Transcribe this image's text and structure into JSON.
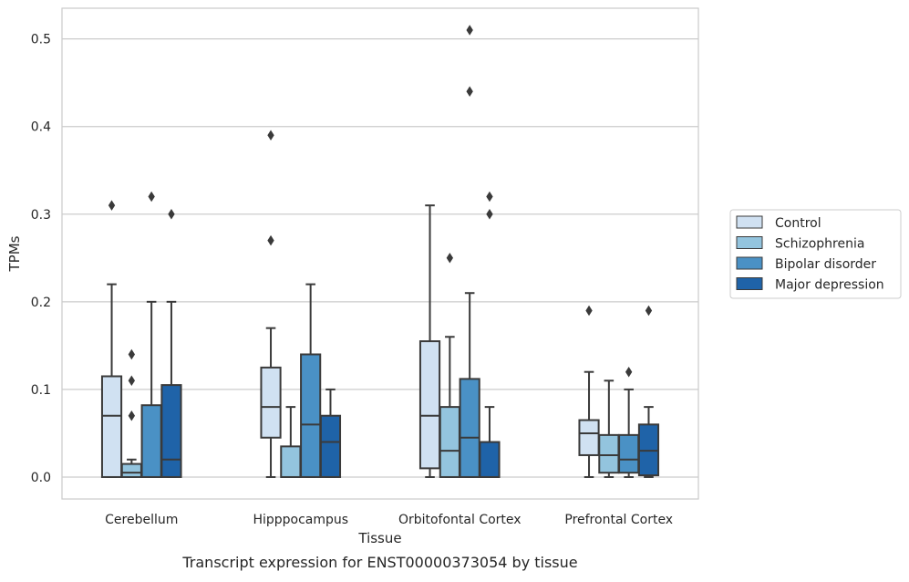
{
  "chart_data": {
    "type": "boxplot",
    "xlabel": "Tissue",
    "ylabel": "TPMs",
    "caption": "Transcript expression for ENST00000373054 by tissue",
    "ylim": [
      -0.025,
      0.535
    ],
    "yticks": [
      0.0,
      0.1,
      0.2,
      0.3,
      0.4,
      0.5
    ],
    "ytick_labels": [
      "0.0",
      "0.1",
      "0.2",
      "0.3",
      "0.4",
      "0.5"
    ],
    "grid": "horizontal",
    "legend_position": "right-outside",
    "categories": [
      "Cerebellum",
      "Hipppocampus",
      "Orbitofontal Cortex",
      "Prefrontal Cortex"
    ],
    "series": [
      {
        "name": "Control",
        "color": "#d0e1f2",
        "boxes": [
          {
            "whislo": 0.0,
            "q1": 0.0,
            "med": 0.07,
            "q3": 0.115,
            "whishi": 0.22,
            "fliers": [
              0.31
            ]
          },
          {
            "whislo": 0.0,
            "q1": 0.045,
            "med": 0.08,
            "q3": 0.125,
            "whishi": 0.17,
            "fliers": [
              0.27,
              0.39
            ]
          },
          {
            "whislo": 0.0,
            "q1": 0.01,
            "med": 0.07,
            "q3": 0.155,
            "whishi": 0.31,
            "fliers": []
          },
          {
            "whislo": 0.0,
            "q1": 0.025,
            "med": 0.05,
            "q3": 0.065,
            "whishi": 0.12,
            "fliers": [
              0.19
            ]
          }
        ]
      },
      {
        "name": "Schizophrenia",
        "color": "#93c4de",
        "boxes": [
          {
            "whislo": 0.0,
            "q1": 0.0,
            "med": 0.005,
            "q3": 0.015,
            "whishi": 0.02,
            "fliers": [
              0.07,
              0.11,
              0.14
            ]
          },
          {
            "whislo": 0.0,
            "q1": 0.0,
            "med": 0.0,
            "q3": 0.035,
            "whishi": 0.08,
            "fliers": []
          },
          {
            "whislo": 0.0,
            "q1": 0.0,
            "med": 0.03,
            "q3": 0.08,
            "whishi": 0.16,
            "fliers": [
              0.25
            ]
          },
          {
            "whislo": 0.0,
            "q1": 0.005,
            "med": 0.025,
            "q3": 0.048,
            "whishi": 0.11,
            "fliers": []
          }
        ]
      },
      {
        "name": "Bipolar disorder",
        "color": "#4a91c5",
        "boxes": [
          {
            "whislo": 0.0,
            "q1": 0.0,
            "med": 0.0,
            "q3": 0.082,
            "whishi": 0.2,
            "fliers": [
              0.32
            ]
          },
          {
            "whislo": 0.0,
            "q1": 0.0,
            "med": 0.06,
            "q3": 0.14,
            "whishi": 0.22,
            "fliers": []
          },
          {
            "whislo": 0.0,
            "q1": 0.0,
            "med": 0.045,
            "q3": 0.112,
            "whishi": 0.21,
            "fliers": [
              0.44,
              0.51
            ]
          },
          {
            "whislo": 0.0,
            "q1": 0.005,
            "med": 0.02,
            "q3": 0.048,
            "whishi": 0.1,
            "fliers": [
              0.12
            ]
          }
        ]
      },
      {
        "name": "Major depression",
        "color": "#1f63a8",
        "boxes": [
          {
            "whislo": 0.0,
            "q1": 0.0,
            "med": 0.02,
            "q3": 0.105,
            "whishi": 0.2,
            "fliers": [
              0.3
            ]
          },
          {
            "whislo": 0.0,
            "q1": 0.0,
            "med": 0.04,
            "q3": 0.07,
            "whishi": 0.1,
            "fliers": []
          },
          {
            "whislo": 0.0,
            "q1": 0.0,
            "med": 0.0,
            "q3": 0.04,
            "whishi": 0.08,
            "fliers": [
              0.3,
              0.32
            ]
          },
          {
            "whislo": 0.0,
            "q1": 0.002,
            "med": 0.03,
            "q3": 0.06,
            "whishi": 0.08,
            "fliers": [
              0.19
            ]
          }
        ]
      }
    ]
  }
}
